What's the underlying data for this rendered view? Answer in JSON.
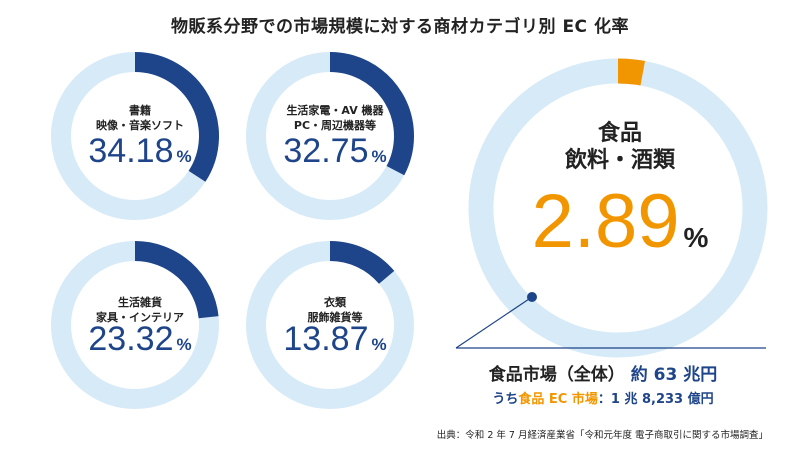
{
  "title": "物販系分野での市場規模に対する商材カテゴリ別 EC 化率",
  "colors": {
    "track": "#d6eaf8",
    "ring": "#1e4489",
    "accent": "#f29600",
    "text": "#222222"
  },
  "percent_sign": "%",
  "chart_data": {
    "type": "donut",
    "title": "物販系分野での市場規模に対する商材カテゴリ別 EC 化率",
    "unit": "%",
    "max": 100,
    "items": [
      {
        "line1": "書籍",
        "line2": "映像・音楽ソフト",
        "label": "34.18",
        "value": 34.18
      },
      {
        "line1": "生活家電・AV 機器",
        "line2": "PC・周辺機器等",
        "label": "32.75",
        "value": 32.75
      },
      {
        "line1": "生活雑貨",
        "line2": "家具・インテリア",
        "label": "23.32",
        "value": 23.32
      },
      {
        "line1": "衣類",
        "line2": "服飾雑貨等",
        "label": "13.87",
        "value": 13.87
      },
      {
        "line1": "食品",
        "line2": "飲料・酒類",
        "label": "2.89",
        "value": 2.89
      }
    ]
  },
  "market": {
    "label": "食品市場（全体）",
    "value": "約 63 兆円",
    "prefix": "うち",
    "sub_label": "食品 EC 市場",
    "sub_value": "：1 兆 8,233 億円"
  },
  "source": "出典：令和 2 年 7 月経済産業省「令和元年度 電子商取引に関する市場調査」"
}
